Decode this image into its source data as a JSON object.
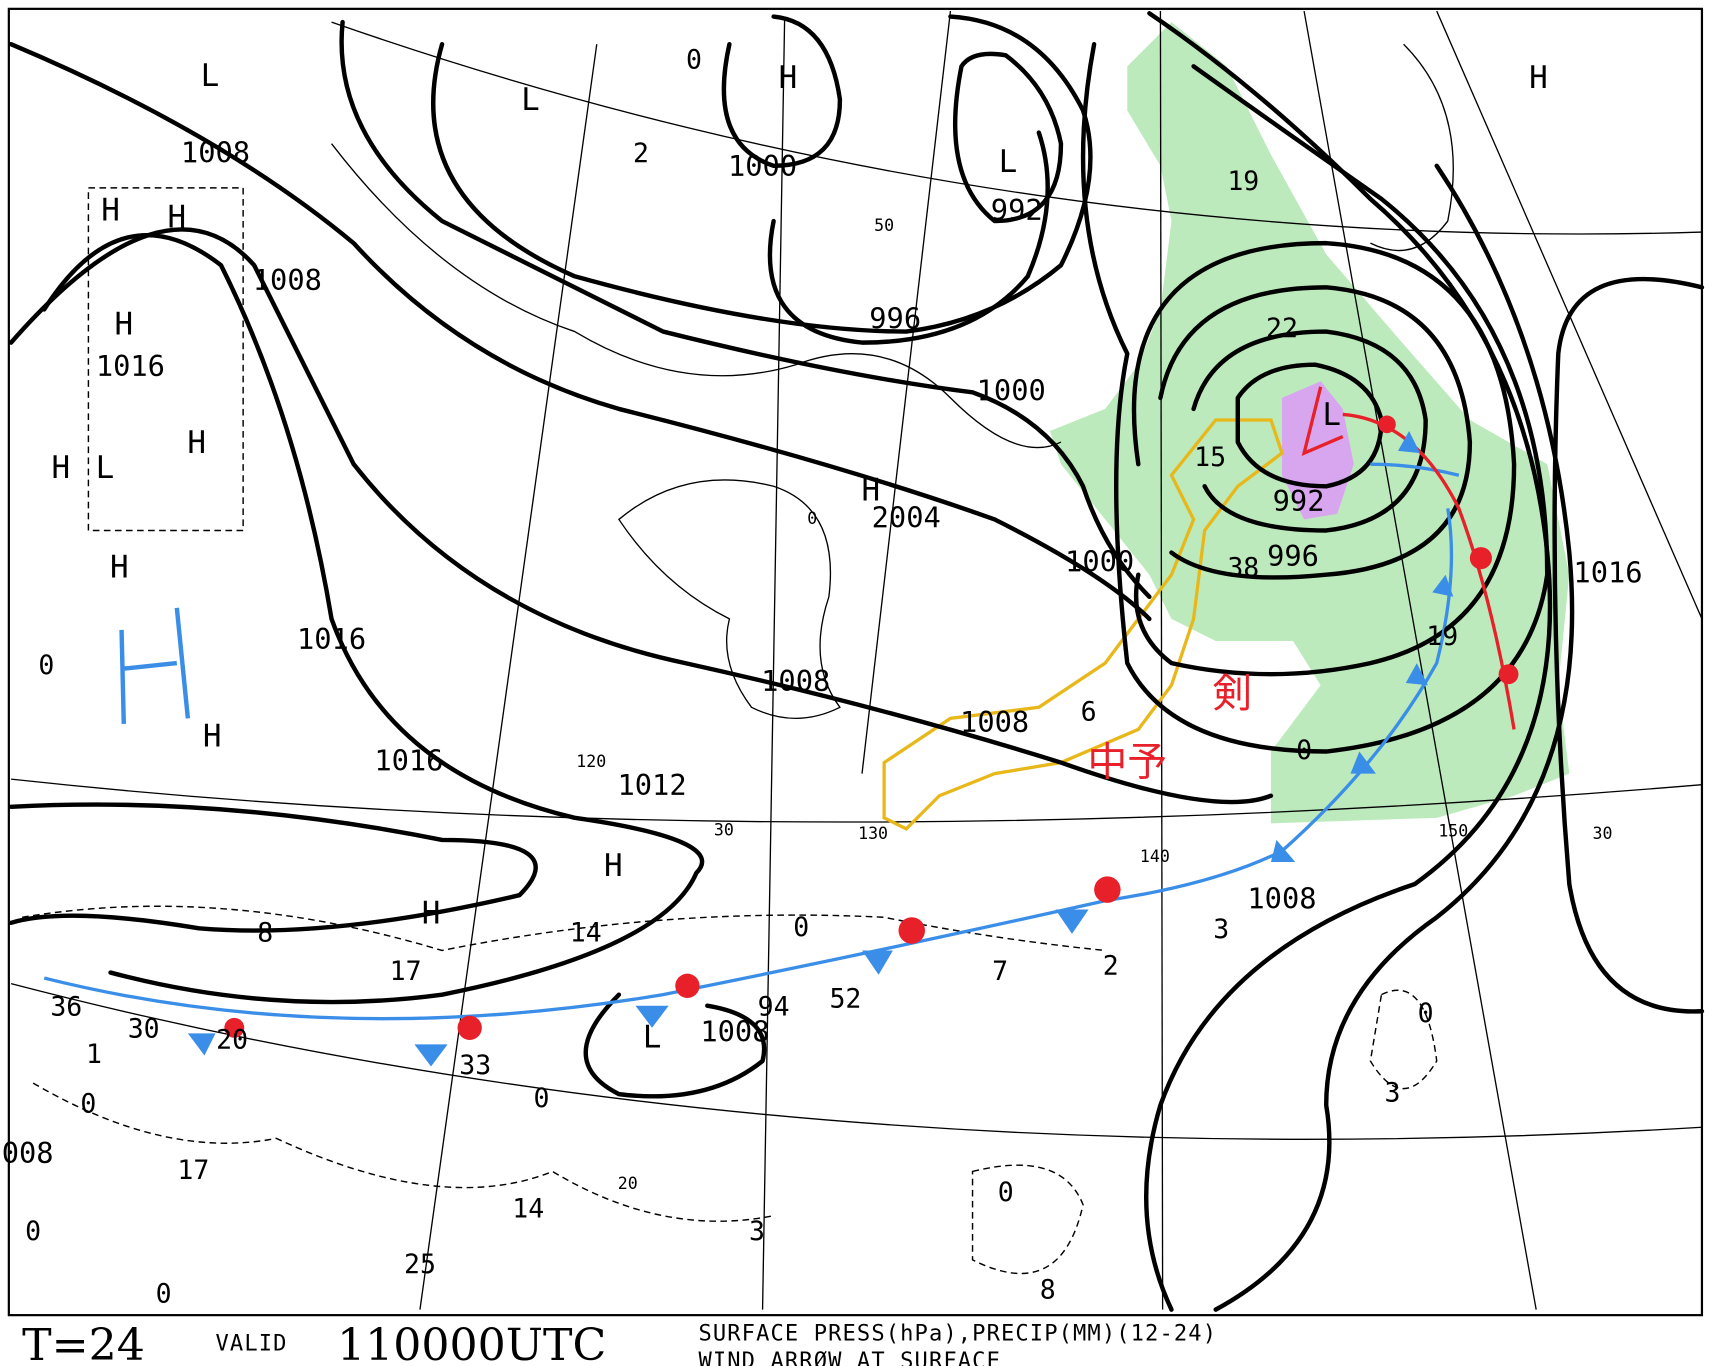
{
  "footer": {
    "forecast_time": "T=24",
    "valid_label": "VALID",
    "valid_time": "110000UTC",
    "field_line1": "SURFACE PRESS(hPa),PRECIP(MM)(12-24)",
    "field_line2": "WIND ARRØW AT SURFACE"
  },
  "isobar_labels": [
    "1008",
    "1008",
    "1016",
    "1000",
    "992",
    "996",
    "1000",
    "2004",
    "1000",
    "996",
    "992",
    "1016",
    "1016",
    "1008",
    "1008",
    "1016",
    "1012",
    "1008",
    "1008",
    "008"
  ],
  "pressure_centers": [
    "L",
    "L",
    "H",
    "L",
    "H",
    "H",
    "H",
    "H",
    "H",
    "L",
    "H",
    "H",
    "H",
    "H",
    "H",
    "L",
    "L",
    "H"
  ],
  "grid_labels": [
    "120",
    "130",
    "140",
    "150",
    "30",
    "30",
    "20",
    "50",
    "0"
  ],
  "precip_labels": [
    "8",
    "17",
    "14",
    "30",
    "36",
    "1",
    "20",
    "33",
    "94",
    "52",
    "7",
    "2",
    "3",
    "19",
    "22",
    "15",
    "38",
    "6",
    "2",
    "0",
    "19",
    "0",
    "0",
    "3",
    "0",
    "8",
    "3",
    "14",
    "25",
    "17",
    "0",
    "0",
    "0",
    "0",
    "0",
    "0"
  ],
  "annotations": [
    "剣",
    "中予"
  ]
}
